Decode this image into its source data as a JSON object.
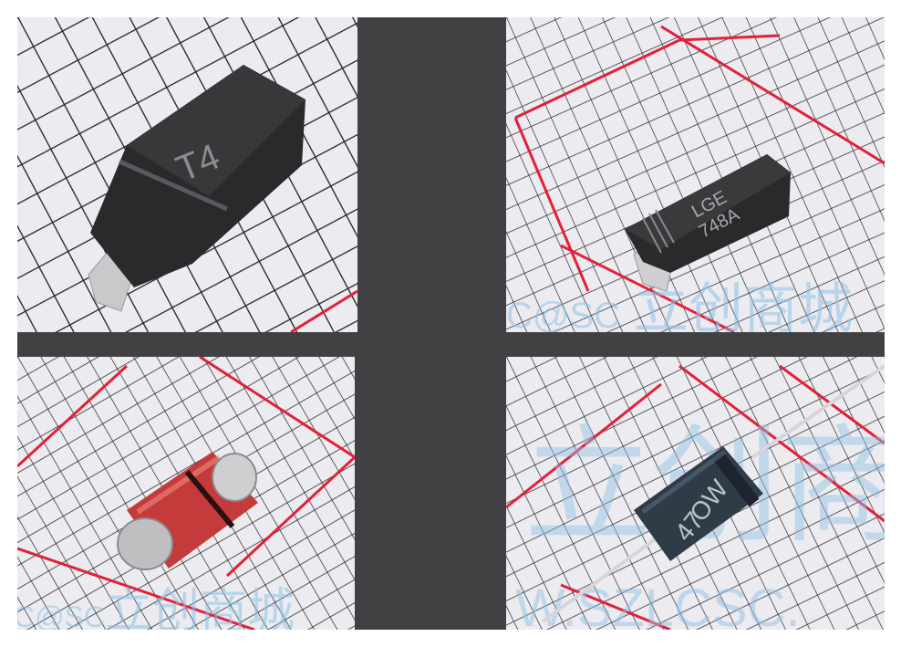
{
  "photos": [
    {
      "component": "SOD-123 diode",
      "marking": [
        "T4"
      ]
    },
    {
      "component": "SMA diode",
      "marking": [
        "LGE",
        "748A"
      ]
    },
    {
      "component": "MiniMELF glass diode",
      "marking": []
    },
    {
      "component": "DO-41 axial diode",
      "marking": [
        "OW",
        "47"
      ]
    }
  ],
  "watermark": {
    "text_cn": "立创商城",
    "prefix": "C@SC",
    "url_fragment": "W.SZLCSC."
  },
  "colors": {
    "background": "#414042",
    "paper": "#ecebf0",
    "grid_black": "#1e1e22",
    "grid_red": "#e2203a",
    "body_black": "#2a2a2c",
    "glass_red": "#c53a3a",
    "watermark_blue": "#8fc3e6"
  }
}
